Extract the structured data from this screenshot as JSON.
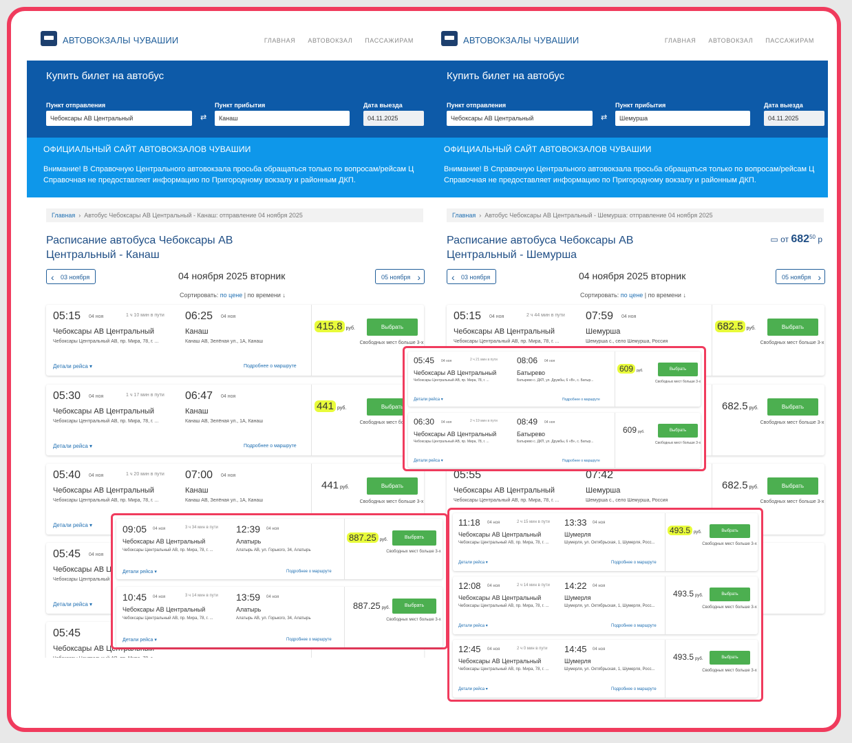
{
  "brand": "АВТОВОКЗАЛЫ ЧУВАШИИ",
  "nav": [
    "ГЛАВНАЯ",
    "АВТОВОКЗАЛ",
    "ПАССАЖИРАМ"
  ],
  "hero_title": "Купить билет на автобус",
  "labels": {
    "from": "Пункт отправления",
    "to": "Пункт прибытия",
    "date": "Дата выезда"
  },
  "swap_icon": "swap-arrows-icon",
  "official": "ОФИЦИАЛЬНЫЙ САЙТ АВТОВОКЗАЛОВ ЧУВАШИИ",
  "warning": [
    "Внимание! В Справочную Центрального автовокзала просьба обращаться только по вопросам/рейсам Ц",
    "Справочная не предоставляет информацию по Пригородному вокзалу и районным ДКП."
  ],
  "crumb_home": "Главная",
  "crumb_sep": "›",
  "prev_label": "03 ноября",
  "next_label": "05 ноября",
  "day_title": "04 ноября 2025 вторник",
  "sort": {
    "label": "Сортировать:",
    "by_price": "по цене",
    "sep": "|",
    "by_time": "по времени ↓"
  },
  "details_label": "Детали рейса ▾",
  "more_label": "Подробнее о маршруте",
  "select_label": "Выбрать",
  "seats_label": "Свободных мест больше 3-х",
  "currency": "руб.",
  "origin_station": "Чебоксары АВ Центральный",
  "origin_addr": "Чебоксары Центральный АВ, пр. Мира, 78, г. ...",
  "highlight_color": "#e8fb3a",
  "accent_color": "#f03b5d",
  "left": {
    "from": "Чебоксары АВ Центральный",
    "to": "Канаш",
    "date": "04.11.2025",
    "crumb": "Автобус Чебоксары АВ Центральный - Канаш: отправление 04 ноября 2025",
    "title1": "Расписание автобуса Чебоксары АВ",
    "title2": "Центральный - Канаш",
    "trips": [
      {
        "dep": "05:15",
        "ddate": "04 ноя",
        "dur": "1 ч 10 мин в пути",
        "arr": "06:25",
        "adate": "04 ноя",
        "dest": "Канаш",
        "dest_addr": "Канаш АВ, Зелёная ул., 1А, Канаш",
        "price": "415.8"
      },
      {
        "dep": "05:30",
        "ddate": "04 ноя",
        "dur": "1 ч 17 мин в пути",
        "arr": "06:47",
        "adate": "04 ноя",
        "dest": "Канаш",
        "dest_addr": "Канаш АВ, Зелёная ул., 1А, Канаш",
        "price": "441"
      },
      {
        "dep": "05:40",
        "ddate": "04 ноя",
        "dur": "1 ч 20 мин в пути",
        "arr": "07:00",
        "adate": "04 ноя",
        "dest": "Канаш",
        "dest_addr": "Канаш АВ, Зелёная ул., 1А, Канаш",
        "price": "441"
      },
      {
        "dep": "05:45",
        "ddate": "04 ноя",
        "dur": "",
        "arr": "",
        "adate": "",
        "dest": "",
        "dest_addr": "",
        "price": ""
      },
      {
        "dep": "05:45",
        "ddate": "",
        "dur": "",
        "arr": "",
        "adate": "",
        "dest": "",
        "dest_addr": "",
        "price": ""
      }
    ]
  },
  "right": {
    "from": "Чебоксары АВ Центральный",
    "to": "Шемурша",
    "date": "04.11.2025",
    "crumb": "Автобус Чебоксары АВ Центральный - Шемурша: отправление 04 ноября 2025",
    "title1": "Расписание автобуса Чебоксары АВ",
    "title2": "Центральный - Шемурша",
    "from_price_label": "от",
    "from_price": "682",
    "from_price_kop": "50",
    "from_price_cur": "р",
    "card_icon": "ticket-card-icon",
    "trips": [
      {
        "dep": "05:15",
        "ddate": "04 ноя",
        "dur": "2 ч 44 мин в пути",
        "arr": "07:59",
        "adate": "04 ноя",
        "dest": "Шемурша",
        "dest_addr": "Шемурша с., село Шемурша, Россия",
        "price": "682.5"
      },
      {
        "dep": "",
        "ddate": "",
        "dur": "",
        "arr": "",
        "adate": "",
        "dest": "",
        "dest_addr": "",
        "price": "682.5"
      },
      {
        "dep": "05:55",
        "ddate": "",
        "dur": "",
        "arr": "07:42",
        "adate": "",
        "dest": "Шемурша",
        "dest_addr": "Шемурша с., село Шемурша, Россия",
        "price": "682.5"
      },
      {
        "dep": "",
        "ddate": "",
        "dur": "",
        "arr": "",
        "adate": "",
        "dest": "",
        "dest_addr": "",
        "price": ""
      }
    ]
  },
  "overlay_alatyr": [
    {
      "dep": "09:05",
      "ddate": "04 ноя",
      "dur": "3 ч 34 мин в пути",
      "arr": "12:39",
      "adate": "04 ноя",
      "dest": "Алатырь",
      "dest_addr": "Алатырь АВ, ул. Горького, 34, Алатырь",
      "price": "887.25"
    },
    {
      "dep": "10:45",
      "ddate": "04 ноя",
      "dur": "3 ч 14 мин в пути",
      "arr": "13:59",
      "adate": "04 ноя",
      "dest": "Алатырь",
      "dest_addr": "Алатырь АВ, ул. Горького, 34, Алатырь",
      "price": "887.25"
    }
  ],
  "overlay_batyrevo": [
    {
      "dep": "05:45",
      "ddate": "04 ноя",
      "dur": "2 ч 21 мин в пути",
      "arr": "08:06",
      "adate": "04 ноя",
      "dest": "Батырево",
      "dest_addr": "Батырево с. ДКП, ул. Дружбы, 6 «В», с. Батыр...",
      "price": "609"
    },
    {
      "dep": "06:30",
      "ddate": "04 ноя",
      "dur": "2 ч 19 мин в пути",
      "arr": "08:49",
      "adate": "04 ноя",
      "dest": "Батырево",
      "dest_addr": "Батырево с. ДКП, ул. Дружбы, 6 «В», с. Батыр...",
      "price": "609"
    }
  ],
  "overlay_shumerlya": [
    {
      "dep": "11:18",
      "ddate": "04 ноя",
      "dur": "2 ч 15 мин в пути",
      "arr": "13:33",
      "adate": "04 ноя",
      "dest": "Шумерля",
      "dest_addr": "Шумерля, ул. Октябрьская, 1, Шумерля, Росс...",
      "price": "493.5"
    },
    {
      "dep": "12:08",
      "ddate": "04 ноя",
      "dur": "2 ч 14 мин в пути",
      "arr": "14:22",
      "adate": "04 ноя",
      "dest": "Шумерля",
      "dest_addr": "Шумерля, ул. Октябрьская, 1, Шумерля, Росс...",
      "price": "493.5"
    },
    {
      "dep": "12:45",
      "ddate": "04 ноя",
      "dur": "2 ч 0 мин в пути",
      "arr": "14:45",
      "adate": "04 ноя",
      "dest": "Шумерля",
      "dest_addr": "Шумерля, ул. Октябрьская, 1, Шумерля, Росс...",
      "price": "493.5"
    }
  ]
}
